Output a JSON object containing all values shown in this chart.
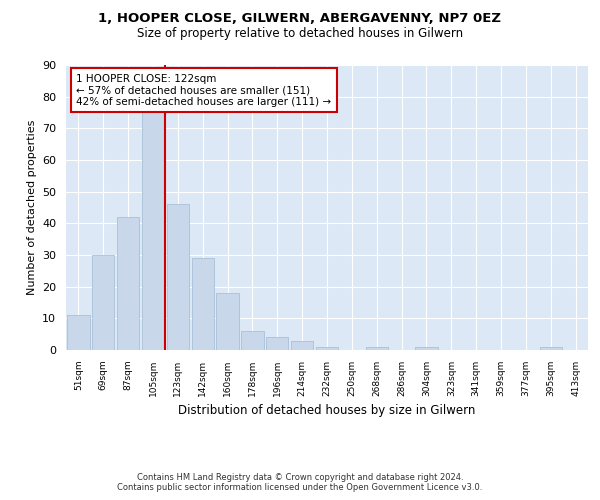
{
  "title1": "1, HOOPER CLOSE, GILWERN, ABERGAVENNY, NP7 0EZ",
  "title2": "Size of property relative to detached houses in Gilwern",
  "xlabel": "Distribution of detached houses by size in Gilwern",
  "ylabel": "Number of detached properties",
  "bar_color": "#c8d8ea",
  "bar_edge_color": "#a8c0d8",
  "bg_color": "#dce8f5",
  "grid_color": "#ffffff",
  "categories": [
    "51sqm",
    "69sqm",
    "87sqm",
    "105sqm",
    "123sqm",
    "142sqm",
    "160sqm",
    "178sqm",
    "196sqm",
    "214sqm",
    "232sqm",
    "250sqm",
    "268sqm",
    "286sqm",
    "304sqm",
    "323sqm",
    "341sqm",
    "359sqm",
    "377sqm",
    "395sqm",
    "413sqm"
  ],
  "values": [
    11,
    30,
    42,
    75,
    46,
    29,
    18,
    6,
    4,
    3,
    1,
    0,
    1,
    0,
    1,
    0,
    0,
    0,
    0,
    1,
    0
  ],
  "ylim": [
    0,
    90
  ],
  "yticks": [
    0,
    10,
    20,
    30,
    40,
    50,
    60,
    70,
    80,
    90
  ],
  "property_line_label": "1 HOOPER CLOSE: 122sqm",
  "annotation_line1": "← 57% of detached houses are smaller (151)",
  "annotation_line2": "42% of semi-detached houses are larger (111) →",
  "annotation_box_color": "#cc0000",
  "footnote1": "Contains HM Land Registry data © Crown copyright and database right 2024.",
  "footnote2": "Contains public sector information licensed under the Open Government Licence v3.0."
}
